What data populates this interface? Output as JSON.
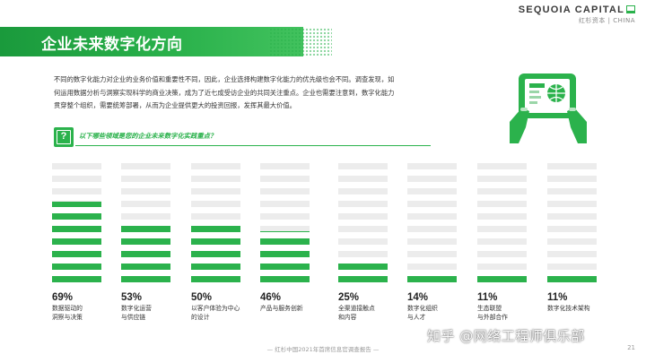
{
  "logo": {
    "name": "SEQUOIA CAPITAL",
    "subtitle": "红杉资本 | CHINA"
  },
  "title": "企业未来数字化方向",
  "intro": [
    "不同的数字化能力对企业的业务价值和重要性不同，因此，企业选择构建数字化能力的优先级也会不同。调查发现，如",
    "何运用数据分析与洞察实现科学的商业决策，成为了近七成受访企业的共同关注重点。企业也需要注意到，数字化能力",
    "贯穿整个组织，需要统筹部署，从而为企业提供更大的投资回报，发挥其最大价值。"
  ],
  "question_mark": "?",
  "question": "以下哪些领域是您的企业未来数字化实践重点？",
  "colors": {
    "accent": "#2bb24c",
    "track": "#ececec"
  },
  "illustration_icon": "tablet-data-hands-icon",
  "chart_data": {
    "type": "bar",
    "categories": [
      [
        "数据驱动的",
        "洞察与决策"
      ],
      [
        "数字化运营",
        "与供应链"
      ],
      [
        "以客户体验为中心",
        "的设计"
      ],
      [
        "产品与服务创新"
      ],
      [
        "全渠道接触点",
        "和内容"
      ],
      [
        "数字化组织",
        "与人才"
      ],
      [
        "生态联盟",
        "与外部合作"
      ],
      [
        "数字化技术架构"
      ]
    ],
    "values": [
      69,
      53,
      50,
      46,
      25,
      14,
      11,
      11
    ],
    "value_labels": [
      "69%",
      "53%",
      "50%",
      "46%",
      "25%",
      "14%",
      "11%",
      "11%"
    ],
    "unit": "%",
    "ylim": [
      0,
      100
    ]
  },
  "footer": "— 红杉中国2021年首席信息官调查报告 —",
  "page_number": "21",
  "watermark": "知乎 @网络工程师俱乐部"
}
